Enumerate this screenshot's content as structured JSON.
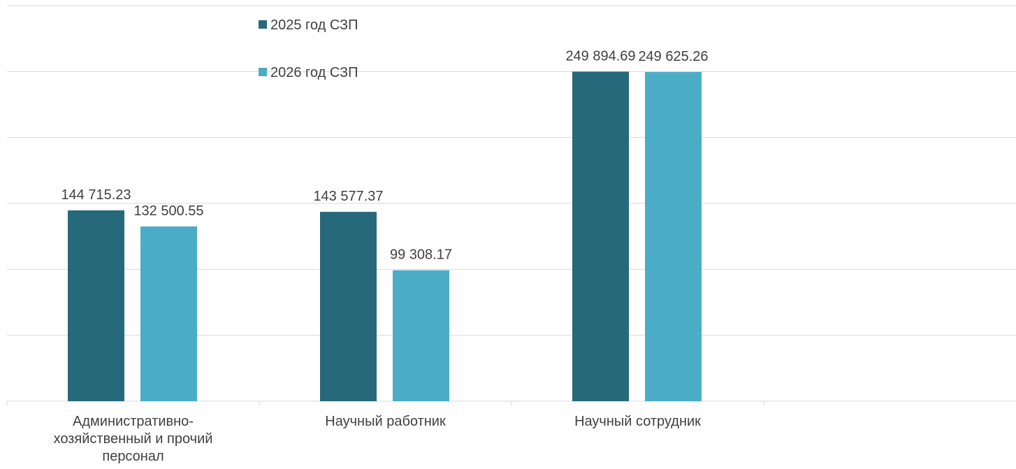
{
  "chart_data": {
    "type": "bar",
    "categories": [
      "Административно-хозяйственный и прочий персонал",
      "Научный работник",
      "Научный сотрудник",
      null
    ],
    "series": [
      {
        "name": "2025 год СЗП",
        "color": "#26697a",
        "values": [
          144715.23,
          143577.37,
          249894.69,
          null
        ],
        "value_labels": [
          "144 715.23",
          "143 577.37",
          "249 894.69",
          null
        ]
      },
      {
        "name": "2026 год СЗП",
        "color": "#4bacc6",
        "values": [
          132500.55,
          99308.17,
          249625.26,
          null
        ],
        "value_labels": [
          "132 500.55",
          "99 308.17",
          "249 625.26",
          null
        ]
      }
    ],
    "ylim": [
      0,
      300000
    ],
    "yticks": [
      0,
      50000,
      100000,
      150000,
      200000,
      250000,
      300000
    ],
    "grid": true,
    "legend": "top-left"
  }
}
